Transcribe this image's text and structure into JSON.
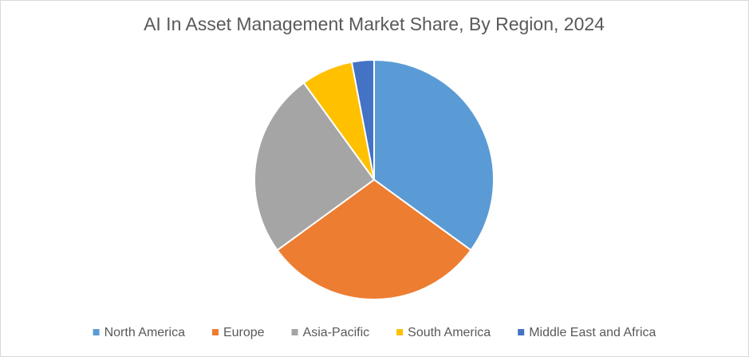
{
  "chart_data": {
    "type": "pie",
    "title": "AI In Asset Management Market Share, By Region, 2024",
    "categories": [
      "North America",
      "Europe",
      "Asia-Pacific",
      "South America",
      "Middle East and Africa"
    ],
    "values": [
      35,
      30,
      25,
      7,
      3
    ],
    "colors": [
      "#5b9bd5",
      "#ed7d31",
      "#a5a5a5",
      "#ffc000",
      "#4472c4"
    ],
    "legend": "bottom"
  }
}
